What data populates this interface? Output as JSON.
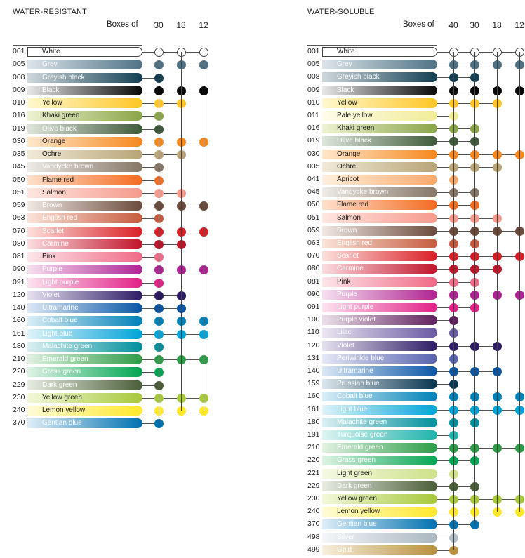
{
  "left": {
    "title": "WATER-RESISTANT",
    "boxes_label": "Boxes of",
    "columns": [
      "30",
      "18",
      "12"
    ],
    "rows": [
      {
        "code": "001",
        "name": "White",
        "c1": "#ffffff",
        "c2": "#ffffff",
        "dot": "#ffffff",
        "boxes": [
          1,
          1,
          1
        ]
      },
      {
        "code": "005",
        "name": "Grey",
        "c1": "#dde5ea",
        "c2": "#4f7285",
        "dot": "#4f7285",
        "boxes": [
          1,
          1,
          1
        ]
      },
      {
        "code": "008",
        "name": "Greyish black",
        "c1": "#cfd8dc",
        "c2": "#123f54",
        "dot": "#123f54",
        "boxes": [
          1,
          0,
          0
        ]
      },
      {
        "code": "009",
        "name": "Black",
        "c1": "#e8e8e8",
        "c2": "#080808",
        "dot": "#080808",
        "boxes": [
          1,
          1,
          1
        ]
      },
      {
        "code": "010",
        "name": "Yellow",
        "c1": "#fff8d0",
        "c2": "#ffc626",
        "dot": "#ffc626",
        "boxes": [
          1,
          1,
          0
        ]
      },
      {
        "code": "016",
        "name": "Khaki green",
        "c1": "#eef2d2",
        "c2": "#8aa548",
        "dot": "#8aa548",
        "boxes": [
          1,
          0,
          0
        ]
      },
      {
        "code": "019",
        "name": "Olive black",
        "c1": "#dfe6dc",
        "c2": "#3e5a3a",
        "dot": "#3e5a3a",
        "boxes": [
          1,
          0,
          0
        ]
      },
      {
        "code": "030",
        "name": "Orange",
        "c1": "#ffe8cc",
        "c2": "#f6881e",
        "dot": "#f6881e",
        "boxes": [
          1,
          1,
          1
        ]
      },
      {
        "code": "035",
        "name": "Ochre",
        "c1": "#f1ead8",
        "c2": "#b8a477",
        "dot": "#b8a477",
        "boxes": [
          1,
          1,
          0
        ]
      },
      {
        "code": "045",
        "name": "Vandycke brown",
        "c1": "#eeebe8",
        "c2": "#857565",
        "dot": "#857565",
        "boxes": [
          1,
          0,
          0
        ]
      },
      {
        "code": "050",
        "name": "Flame red",
        "c1": "#ffe0cc",
        "c2": "#f36b21",
        "dot": "#f36b21",
        "boxes": [
          1,
          0,
          0
        ]
      },
      {
        "code": "051",
        "name": "Salmon",
        "c1": "#ffe6e0",
        "c2": "#f59a8c",
        "dot": "#f59a8c",
        "boxes": [
          1,
          1,
          0
        ]
      },
      {
        "code": "059",
        "name": "Brown",
        "c1": "#f1e8e4",
        "c2": "#6b4a3c",
        "dot": "#6b4a3c",
        "boxes": [
          1,
          1,
          1
        ]
      },
      {
        "code": "063",
        "name": "English red",
        "c1": "#fbe3da",
        "c2": "#c65b3f",
        "dot": "#c65b3f",
        "boxes": [
          1,
          0,
          0
        ]
      },
      {
        "code": "070",
        "name": "Scarlet",
        "c1": "#fde0dc",
        "c2": "#d91f26",
        "dot": "#d91f26",
        "boxes": [
          1,
          1,
          1
        ]
      },
      {
        "code": "080",
        "name": "Carmine",
        "c1": "#fbdde0",
        "c2": "#c0142a",
        "dot": "#c0142a",
        "boxes": [
          1,
          1,
          0
        ]
      },
      {
        "code": "081",
        "name": "Pink",
        "c1": "#fde6ea",
        "c2": "#ef6a86",
        "dot": "#ef6a86",
        "boxes": [
          1,
          0,
          0
        ]
      },
      {
        "code": "090",
        "name": "Purple",
        "c1": "#f6e0f0",
        "c2": "#b02393",
        "dot": "#b02393",
        "boxes": [
          1,
          1,
          1
        ]
      },
      {
        "code": "091",
        "name": "Light purple",
        "c1": "#fde3ef",
        "c2": "#e22088",
        "dot": "#e22088",
        "boxes": [
          1,
          0,
          0
        ]
      },
      {
        "code": "120",
        "name": "Violet",
        "c1": "#e6e1f0",
        "c2": "#2d1b65",
        "dot": "#2d1b65",
        "boxes": [
          1,
          1,
          0
        ]
      },
      {
        "code": "140",
        "name": "Ultramarine",
        "c1": "#dde8f6",
        "c2": "#0a56a5",
        "dot": "#0a56a5",
        "boxes": [
          1,
          1,
          0
        ]
      },
      {
        "code": "160",
        "name": "Cobalt blue",
        "c1": "#dbeef6",
        "c2": "#0081b8",
        "dot": "#0081b8",
        "boxes": [
          1,
          1,
          1
        ]
      },
      {
        "code": "161",
        "name": "Light blue",
        "c1": "#dff3fa",
        "c2": "#00a3d8",
        "dot": "#00a3d8",
        "boxes": [
          1,
          1,
          1
        ]
      },
      {
        "code": "180",
        "name": "Malachite green",
        "c1": "#dcf0f2",
        "c2": "#008f9c",
        "dot": "#008f9c",
        "boxes": [
          1,
          0,
          0
        ]
      },
      {
        "code": "210",
        "name": "Emerald green",
        "c1": "#e2f2e2",
        "c2": "#2c9c47",
        "dot": "#2c9c47",
        "boxes": [
          1,
          1,
          1
        ]
      },
      {
        "code": "220",
        "name": "Grass green",
        "c1": "#dff3e6",
        "c2": "#00a651",
        "dot": "#00a651",
        "boxes": [
          1,
          0,
          0
        ]
      },
      {
        "code": "229",
        "name": "Dark green",
        "c1": "#e8ece2",
        "c2": "#4a5e38",
        "dot": "#4a5e38",
        "boxes": [
          1,
          0,
          0
        ]
      },
      {
        "code": "230",
        "name": "Yellow green",
        "c1": "#f2f8da",
        "c2": "#a6c83a",
        "dot": "#a6c83a",
        "boxes": [
          1,
          1,
          1
        ]
      },
      {
        "code": "240",
        "name": "Lemon yellow",
        "c1": "#fffbd8",
        "c2": "#ffe82a",
        "dot": "#ffe82a",
        "boxes": [
          1,
          1,
          1
        ]
      },
      {
        "code": "370",
        "name": "Gentian blue",
        "c1": "#dfeef8",
        "c2": "#0071b0",
        "dot": "#0071b0",
        "boxes": [
          1,
          0,
          0
        ]
      }
    ]
  },
  "right": {
    "title": "WATER-SOLUBLE",
    "boxes_label": "Boxes of",
    "columns": [
      "40",
      "30",
      "18",
      "12"
    ],
    "rows": [
      {
        "code": "001",
        "name": "White",
        "c1": "#ffffff",
        "c2": "#ffffff",
        "dot": "#ffffff",
        "boxes": [
          1,
          1,
          1,
          1
        ]
      },
      {
        "code": "005",
        "name": "Grey",
        "c1": "#dde5ea",
        "c2": "#4f7285",
        "dot": "#4f7285",
        "boxes": [
          1,
          1,
          1,
          1
        ]
      },
      {
        "code": "008",
        "name": "Greyish black",
        "c1": "#cfd8dc",
        "c2": "#123f54",
        "dot": "#123f54",
        "boxes": [
          1,
          1,
          0,
          0
        ]
      },
      {
        "code": "009",
        "name": "Black",
        "c1": "#e8e8e8",
        "c2": "#080808",
        "dot": "#080808",
        "boxes": [
          1,
          1,
          1,
          1
        ]
      },
      {
        "code": "010",
        "name": "Yellow",
        "c1": "#fff8d0",
        "c2": "#ffc626",
        "dot": "#ffc626",
        "boxes": [
          1,
          1,
          1,
          0
        ]
      },
      {
        "code": "011",
        "name": "Pale yellow",
        "c1": "#fffcea",
        "c2": "#f1ec9a",
        "dot": "#f1ec9a",
        "boxes": [
          1,
          0,
          0,
          0
        ]
      },
      {
        "code": "016",
        "name": "Khaki green",
        "c1": "#eef2d2",
        "c2": "#8aa548",
        "dot": "#8aa548",
        "boxes": [
          1,
          1,
          0,
          0
        ]
      },
      {
        "code": "019",
        "name": "Olive black",
        "c1": "#dfe6dc",
        "c2": "#3e5a3a",
        "dot": "#3e5a3a",
        "boxes": [
          1,
          1,
          0,
          0
        ]
      },
      {
        "code": "030",
        "name": "Orange",
        "c1": "#ffe8cc",
        "c2": "#f6881e",
        "dot": "#f6881e",
        "boxes": [
          1,
          1,
          1,
          1
        ]
      },
      {
        "code": "035",
        "name": "Ochre",
        "c1": "#f1ead8",
        "c2": "#b8a477",
        "dot": "#b8a477",
        "boxes": [
          1,
          1,
          1,
          0
        ]
      },
      {
        "code": "041",
        "name": "Apricot",
        "c1": "#fff0e0",
        "c2": "#f9a869",
        "dot": "#f9a869",
        "boxes": [
          1,
          0,
          0,
          0
        ]
      },
      {
        "code": "045",
        "name": "Vandycke brown",
        "c1": "#eeebe8",
        "c2": "#857565",
        "dot": "#857565",
        "boxes": [
          1,
          1,
          0,
          0
        ]
      },
      {
        "code": "050",
        "name": "Flame red",
        "c1": "#ffe0cc",
        "c2": "#f36b21",
        "dot": "#f36b21",
        "boxes": [
          1,
          1,
          0,
          0
        ]
      },
      {
        "code": "051",
        "name": "Salmon",
        "c1": "#ffe6e0",
        "c2": "#f59a8c",
        "dot": "#f59a8c",
        "boxes": [
          1,
          1,
          1,
          0
        ]
      },
      {
        "code": "059",
        "name": "Brown",
        "c1": "#f1e8e4",
        "c2": "#6b4a3c",
        "dot": "#6b4a3c",
        "boxes": [
          1,
          1,
          1,
          1
        ]
      },
      {
        "code": "063",
        "name": "English red",
        "c1": "#fbe3da",
        "c2": "#c65b3f",
        "dot": "#c65b3f",
        "boxes": [
          1,
          1,
          0,
          0
        ]
      },
      {
        "code": "070",
        "name": "Scarlet",
        "c1": "#fde0dc",
        "c2": "#d91f26",
        "dot": "#d91f26",
        "boxes": [
          1,
          1,
          1,
          1
        ]
      },
      {
        "code": "080",
        "name": "Carmine",
        "c1": "#fbdde0",
        "c2": "#c0142a",
        "dot": "#c0142a",
        "boxes": [
          1,
          1,
          1,
          0
        ]
      },
      {
        "code": "081",
        "name": "Pink",
        "c1": "#fde6ea",
        "c2": "#ef6a86",
        "dot": "#ef6a86",
        "boxes": [
          1,
          1,
          0,
          0
        ]
      },
      {
        "code": "090",
        "name": "Purple",
        "c1": "#f6e0f0",
        "c2": "#b02393",
        "dot": "#b02393",
        "boxes": [
          1,
          1,
          1,
          1
        ]
      },
      {
        "code": "091",
        "name": "Light purple",
        "c1": "#fde3ef",
        "c2": "#e22088",
        "dot": "#e22088",
        "boxes": [
          1,
          1,
          0,
          0
        ]
      },
      {
        "code": "100",
        "name": "Purple violet",
        "c1": "#ede0ea",
        "c2": "#5e1f5c",
        "dot": "#5e1f5c",
        "boxes": [
          1,
          0,
          0,
          0
        ]
      },
      {
        "code": "110",
        "name": "Lilac",
        "c1": "#ebe6f2",
        "c2": "#6a5aa2",
        "dot": "#6a5aa2",
        "boxes": [
          1,
          0,
          0,
          0
        ]
      },
      {
        "code": "120",
        "name": "Violet",
        "c1": "#e6e1f0",
        "c2": "#2d1b65",
        "dot": "#2d1b65",
        "boxes": [
          1,
          1,
          1,
          0
        ]
      },
      {
        "code": "131",
        "name": "Periwinkle blue",
        "c1": "#e6e8f6",
        "c2": "#5763b0",
        "dot": "#5763b0",
        "boxes": [
          1,
          0,
          0,
          0
        ]
      },
      {
        "code": "140",
        "name": "Ultramarine",
        "c1": "#dde8f6",
        "c2": "#0a56a5",
        "dot": "#0a56a5",
        "boxes": [
          1,
          1,
          1,
          0
        ]
      },
      {
        "code": "159",
        "name": "Prussian blue",
        "c1": "#dde6ec",
        "c2": "#07344f",
        "dot": "#07344f",
        "boxes": [
          1,
          0,
          0,
          0
        ]
      },
      {
        "code": "160",
        "name": "Cobalt blue",
        "c1": "#dbeef6",
        "c2": "#0081b8",
        "dot": "#0081b8",
        "boxes": [
          1,
          1,
          1,
          1
        ]
      },
      {
        "code": "161",
        "name": "Light blue",
        "c1": "#dff3fa",
        "c2": "#00a3d8",
        "dot": "#00a3d8",
        "boxes": [
          1,
          1,
          1,
          1
        ]
      },
      {
        "code": "180",
        "name": "Malachite green",
        "c1": "#dcf0f2",
        "c2": "#008f9c",
        "dot": "#008f9c",
        "boxes": [
          1,
          1,
          0,
          0
        ]
      },
      {
        "code": "191",
        "name": "Turquoise green",
        "c1": "#ddf4f2",
        "c2": "#20b3ac",
        "dot": "#20b3ac",
        "boxes": [
          1,
          0,
          0,
          0
        ]
      },
      {
        "code": "210",
        "name": "Emerald green",
        "c1": "#e2f2e2",
        "c2": "#2c9c47",
        "dot": "#2c9c47",
        "boxes": [
          1,
          1,
          1,
          1
        ]
      },
      {
        "code": "220",
        "name": "Grass green",
        "c1": "#dff3e6",
        "c2": "#00a651",
        "dot": "#00a651",
        "boxes": [
          1,
          1,
          0,
          0
        ]
      },
      {
        "code": "221",
        "name": "Light green",
        "c1": "#f4f9e2",
        "c2": "#cfe18a",
        "dot": "#cfe18a",
        "boxes": [
          1,
          0,
          0,
          0
        ]
      },
      {
        "code": "229",
        "name": "Dark green",
        "c1": "#e8ece2",
        "c2": "#4a5e38",
        "dot": "#4a5e38",
        "boxes": [
          1,
          1,
          0,
          0
        ]
      },
      {
        "code": "230",
        "name": "Yellow green",
        "c1": "#f2f8da",
        "c2": "#a6c83a",
        "dot": "#a6c83a",
        "boxes": [
          1,
          1,
          1,
          1
        ]
      },
      {
        "code": "240",
        "name": "Lemon yellow",
        "c1": "#fffbd8",
        "c2": "#ffe82a",
        "dot": "#ffe82a",
        "boxes": [
          1,
          1,
          1,
          1
        ]
      },
      {
        "code": "370",
        "name": "Gentian blue",
        "c1": "#dfeef8",
        "c2": "#0071b0",
        "dot": "#0071b0",
        "boxes": [
          1,
          1,
          0,
          0
        ]
      },
      {
        "code": "498",
        "name": "Silver",
        "c1": "#f4f6f8",
        "c2": "#a9b6c0",
        "dot": "#b4c0c8",
        "boxes": [
          1,
          0,
          0,
          0
        ]
      },
      {
        "code": "499",
        "name": "Gold",
        "c1": "#f8efdc",
        "c2": "#b88f3c",
        "dot": "#b88f3c",
        "boxes": [
          1,
          0,
          0,
          0
        ]
      }
    ]
  }
}
